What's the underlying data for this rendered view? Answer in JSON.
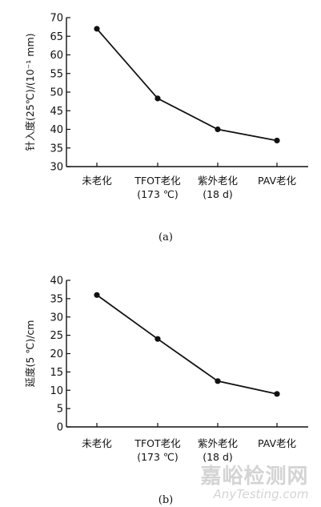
{
  "chart_data": [
    {
      "type": "line",
      "panel_label": "(a)",
      "ylabel": "针入度(25℃)/(10⁻¹ mm)",
      "ylim": [
        30,
        70
      ],
      "yticks": [
        30,
        35,
        40,
        45,
        50,
        55,
        60,
        65,
        70
      ],
      "categories": [
        {
          "line1": "未老化",
          "line2": ""
        },
        {
          "line1": "TFOT老化",
          "line2": "(173 ℃)"
        },
        {
          "line1": "紫外老化",
          "line2": "(18 d)"
        },
        {
          "line1": "PAV老化",
          "line2": ""
        }
      ],
      "series": [
        {
          "values": [
            67,
            48.3,
            40,
            37
          ]
        }
      ],
      "grid": false
    },
    {
      "type": "line",
      "panel_label": "(b)",
      "ylabel": "延度(5 ℃)/cm",
      "ylim": [
        0,
        40
      ],
      "yticks": [
        0,
        5,
        10,
        15,
        20,
        25,
        30,
        35,
        40
      ],
      "categories": [
        {
          "line1": "未老化",
          "line2": ""
        },
        {
          "line1": "TFOT老化",
          "line2": "(173 ℃)"
        },
        {
          "line1": "紫外老化",
          "line2": "(18 d)"
        },
        {
          "line1": "PAV老化",
          "line2": ""
        }
      ],
      "series": [
        {
          "values": [
            36,
            24,
            12.5,
            9
          ]
        }
      ],
      "grid": false
    }
  ],
  "watermark": {
    "line1": "嘉峪检测网",
    "line2": "AnyTesting.com"
  },
  "colors": {
    "line": "#111111",
    "axis": "#111111",
    "watermark": "#d4d4d4"
  }
}
